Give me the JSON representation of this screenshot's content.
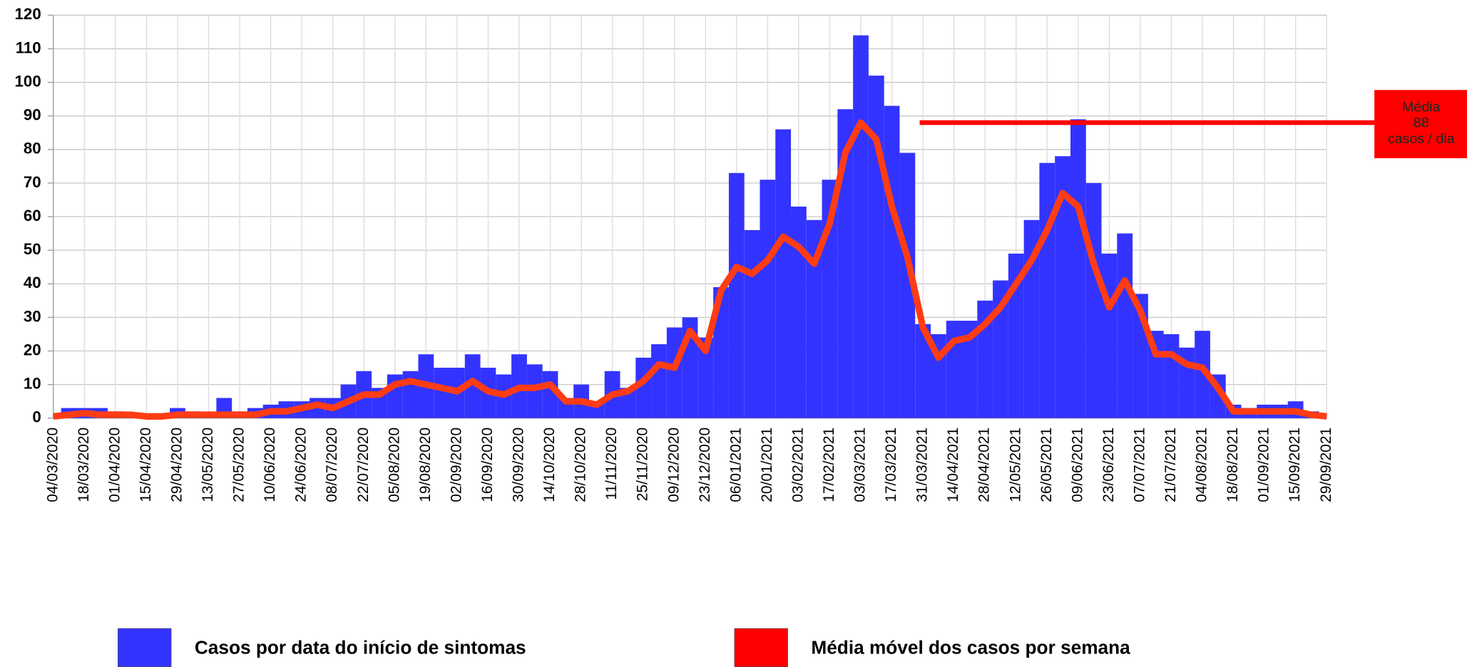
{
  "chart_data": {
    "type": "bar_line",
    "categories": [
      "04/03/2020",
      null,
      "18/03/2020",
      null,
      "01/04/2020",
      null,
      "15/04/2020",
      null,
      "29/04/2020",
      null,
      "13/05/2020",
      null,
      "27/05/2020",
      null,
      "10/06/2020",
      null,
      "24/06/2020",
      null,
      "08/07/2020",
      null,
      "22/07/2020",
      null,
      "05/08/2020",
      null,
      "19/08/2020",
      null,
      "02/09/2020",
      null,
      "16/09/2020",
      null,
      "30/09/2020",
      null,
      "14/10/2020",
      null,
      "28/10/2020",
      null,
      "11/11/2020",
      null,
      "25/11/2020",
      null,
      "09/12/2020",
      null,
      "23/12/2020",
      null,
      "06/01/2021",
      null,
      "20/01/2021",
      null,
      "03/02/2021",
      null,
      "17/02/2021",
      null,
      "03/03/2021",
      null,
      "17/03/2021",
      null,
      "31/03/2021",
      null,
      "14/04/2021",
      null,
      "28/04/2021",
      null,
      "12/05/2021",
      null,
      "26/05/2021",
      null,
      "09/06/2021",
      null,
      "23/06/2021",
      null,
      "07/07/2021",
      null,
      "21/07/2021",
      null,
      "04/08/2021",
      null,
      "18/08/2021",
      null,
      "01/09/2021",
      null,
      "15/09/2021",
      null,
      "29/09/2021"
    ],
    "series": [
      {
        "name": "Casos por data do início de sintomas",
        "color": "#3333ff",
        "kind": "bar",
        "values": [
          1,
          3,
          3,
          3,
          2,
          1,
          1,
          1,
          3,
          2,
          1,
          6,
          2,
          3,
          4,
          5,
          5,
          6,
          6,
          10,
          14,
          9,
          13,
          14,
          19,
          15,
          15,
          19,
          15,
          13,
          19,
          16,
          14,
          6,
          10,
          5,
          14,
          9,
          18,
          22,
          27,
          30,
          24,
          39,
          73,
          56,
          71,
          86,
          63,
          59,
          71,
          92,
          114,
          102,
          93,
          79,
          28,
          25,
          29,
          29,
          35,
          41,
          49,
          59,
          76,
          78,
          89,
          70,
          49,
          55,
          37,
          26,
          25,
          21,
          26,
          13,
          4,
          3,
          4,
          4,
          5,
          2,
          1
        ]
      },
      {
        "name": "Média móvel dos casos por semana",
        "color": "#ff3c14",
        "legend_color": "#ff0000",
        "kind": "line",
        "values": [
          0.5,
          1,
          1.5,
          1,
          1,
          1,
          0.5,
          0.5,
          1,
          1,
          1,
          1,
          1,
          1,
          2,
          2,
          3,
          4,
          3,
          5,
          7,
          7,
          10,
          11,
          10,
          9,
          8,
          11,
          8,
          7,
          9,
          9,
          10,
          5,
          5,
          4,
          7,
          8,
          11,
          16,
          15,
          26,
          20,
          38,
          45,
          43,
          47,
          54,
          51,
          46,
          58,
          79,
          88,
          83,
          63,
          48,
          27,
          18,
          23,
          24,
          28,
          33,
          40,
          47,
          56,
          67,
          63,
          46,
          33,
          41,
          32,
          19,
          19,
          16,
          15,
          9,
          2,
          2,
          2,
          2,
          2,
          1,
          0.5
        ]
      }
    ],
    "ylim": [
      0,
      120
    ],
    "yticks": [
      0,
      10,
      20,
      30,
      40,
      50,
      60,
      70,
      80,
      90,
      100,
      110,
      120
    ],
    "grid": true,
    "annotation": {
      "lines": [
        "Média",
        "88",
        "casos / dia"
      ],
      "value": 88,
      "color": "#ff0000"
    }
  }
}
